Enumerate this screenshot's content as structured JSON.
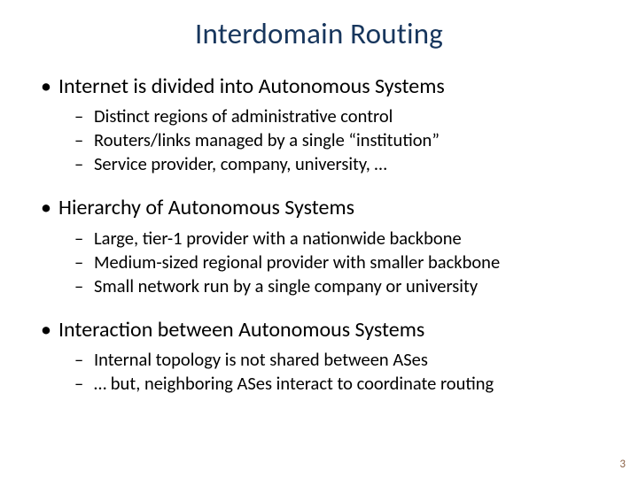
{
  "colors": {
    "title_color": "#17365d",
    "body_color": "#000000",
    "page_number_color": "#8d6449",
    "background_color": "#ffffff"
  },
  "typography": {
    "title_fontsize": 33,
    "l1_fontsize": 24,
    "l2_fontsize": 20.5,
    "page_number_fontsize": 13,
    "font_family": "Calibri"
  },
  "title": "Interdomain Routing",
  "sections": [
    {
      "heading": "Internet is divided into Autonomous Systems",
      "items": [
        "Distinct regions of administrative control",
        "Routers/links managed by a single “institution”",
        "Service provider, company, university, …"
      ]
    },
    {
      "heading": "Hierarchy of Autonomous Systems",
      "items": [
        "Large, tier-1 provider with a nationwide backbone",
        "Medium-sized regional provider with smaller backbone",
        "Small network run by a single company or university"
      ]
    },
    {
      "heading": "Interaction between Autonomous Systems",
      "items": [
        "Internal topology is not shared between ASes",
        "… but, neighboring ASes interact to coordinate routing"
      ]
    }
  ],
  "page_number": "3"
}
